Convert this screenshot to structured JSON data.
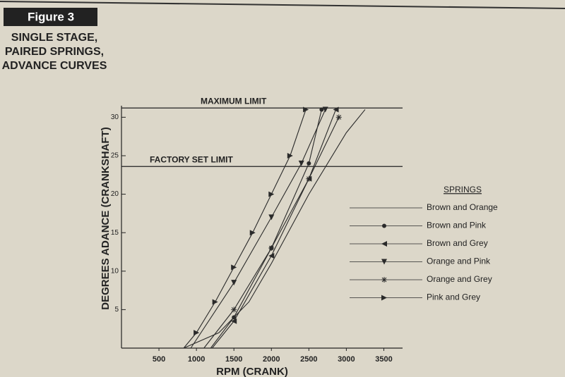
{
  "chart_data": {
    "type": "line",
    "figure_label": "Figure 3",
    "title": [
      "SINGLE STAGE,",
      "PAIRED SPRINGS,",
      "ADVANCE CURVES"
    ],
    "x_label": "RPM (CRANK)",
    "y_label": "DEGREES ADANCE (CRANKSHAFT)",
    "legend_title": "SPRINGS",
    "xlim": [
      0,
      3750
    ],
    "ylim": [
      0,
      31.5
    ],
    "xticks": [
      500,
      1000,
      1500,
      2000,
      2500,
      3000,
      3500
    ],
    "yticks": [
      5,
      10,
      15,
      20,
      25,
      30
    ],
    "limits": [
      {
        "label": "MAXIMUM LIMIT",
        "value": 31.2
      },
      {
        "label": "FACTORY SET LIMIT",
        "value": 23.6
      }
    ],
    "series": [
      {
        "name": "Brown and Orange",
        "color": "#2a2a2a",
        "marker": "none",
        "x": [
          830,
          1300,
          1700,
          2000,
          2500,
          3000,
          3250
        ],
        "values": [
          0,
          2,
          6,
          11,
          20,
          28,
          31
        ]
      },
      {
        "name": "Brown and Pink",
        "color": "#2a2a2a",
        "marker": "circle",
        "x": [
          1190,
          1500,
          2000,
          2500,
          2670
        ],
        "values": [
          0,
          4,
          13,
          24,
          31
        ]
      },
      {
        "name": "Brown and Grey",
        "color": "#2a2a2a",
        "marker": "tri-left",
        "x": [
          1210,
          1500,
          2000,
          2500,
          2860
        ],
        "values": [
          0,
          3.5,
          12,
          22,
          31
        ]
      },
      {
        "name": "Orange and Pink",
        "color": "#2a2a2a",
        "marker": "tri-down",
        "x": [
          925,
          1500,
          2000,
          2400,
          2720
        ],
        "values": [
          0,
          8.5,
          17,
          24,
          31
        ]
      },
      {
        "name": "Orange and Grey",
        "color": "#2a2a2a",
        "marker": "star",
        "x": [
          1100,
          1500,
          2000,
          2500,
          2900
        ],
        "values": [
          0,
          5,
          13,
          22,
          30
        ]
      },
      {
        "name": "Pink and Grey",
        "color": "#2a2a2a",
        "marker": "tri-right",
        "x": [
          830,
          1000,
          1250,
          1500,
          1750,
          2000,
          2250,
          2460
        ],
        "values": [
          0,
          2,
          6,
          10.5,
          15,
          20,
          25,
          31
        ]
      }
    ]
  }
}
